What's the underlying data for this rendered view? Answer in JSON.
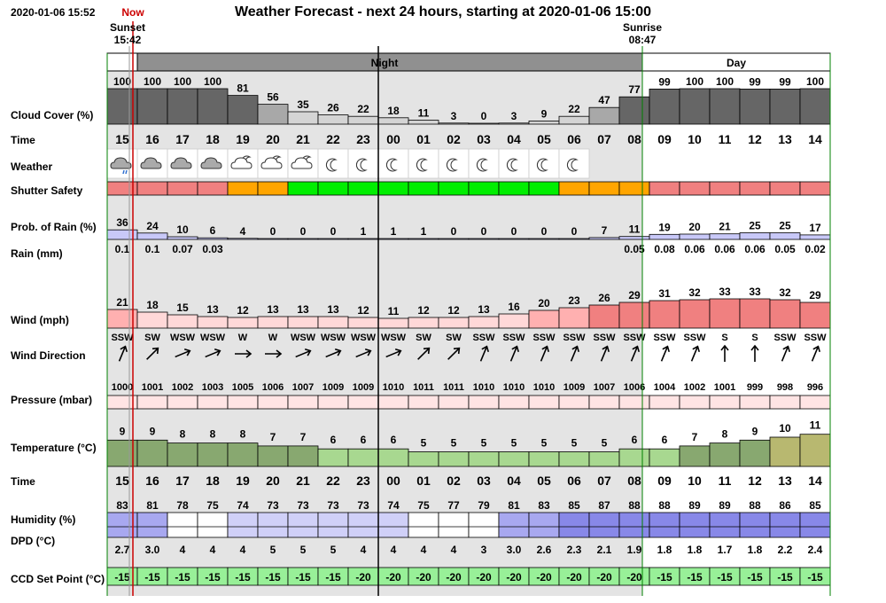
{
  "header": {
    "timestamp": "2020-01-06 15:52",
    "title": "Weather Forecast - next 24 hours, starting at 2020-01-06 15:00",
    "now_label": "Now",
    "sunset_label": "Sunset",
    "sunset_time": "15:42",
    "sunrise_label": "Sunrise",
    "sunrise_time": "08:47",
    "night_label": "Night",
    "day_label": "Day"
  },
  "labels": {
    "cloud": "Cloud Cover (%)",
    "time": "Time",
    "weather": "Weather",
    "shutter": "Shutter Safety",
    "prob_rain": "Prob. of Rain (%)",
    "rain": "Rain (mm)",
    "wind": "Wind (mph)",
    "wind_dir": "Wind Direction",
    "pressure": "Pressure (mbar)",
    "temperature": "Temperature (°C)",
    "time2": "Time",
    "humidity": "Humidity (%)",
    "dpd": "DPD (°C)",
    "ccd": "CCD Set Point (°C)"
  },
  "colors": {
    "night_bg": "#e4e4e4",
    "night_header": "#909090",
    "cloud_dark": "#666666",
    "cloud_mid": "#a8a8a8",
    "cloud_light": "#d4d4d4",
    "shutter_red": "#f08080",
    "shutter_orange": "#ffa500",
    "shutter_green": "#00ee00",
    "rain_prob": "#c8c8f8",
    "wind_light": "#ffd8d8",
    "wind_mid": "#ffb0b0",
    "wind_dark": "#f08080",
    "pressure": "#ffe4e4",
    "temp_dark": "#88a870",
    "temp_light": "#a8d890",
    "temp_warm": "#b8b870",
    "humidity_light": "#d0d0f8",
    "humidity_mid": "#a8a8f0",
    "humidity_dark": "#8888e8",
    "ccd": "#98f098",
    "now_line": "#cc0000",
    "day_line": "#008000"
  },
  "chart_data": {
    "type": "table",
    "hours": [
      "15",
      "16",
      "17",
      "18",
      "19",
      "20",
      "21",
      "22",
      "23",
      "00",
      "01",
      "02",
      "03",
      "04",
      "05",
      "06",
      "07",
      "08",
      "09",
      "10",
      "11",
      "12",
      "13",
      "14"
    ],
    "cloud_cover": [
      100,
      100,
      100,
      100,
      81,
      56,
      35,
      26,
      22,
      18,
      11,
      3,
      0,
      3,
      9,
      22,
      47,
      77,
      99,
      100,
      100,
      99,
      99,
      100
    ],
    "weather_icons": [
      "rain-cloud-icon",
      "cloud-icon",
      "cloud-icon",
      "cloud-icon",
      "partly-cloudy-moon-icon",
      "partly-cloudy-moon-icon",
      "partly-cloudy-moon-icon",
      "moon-icon",
      "moon-icon",
      "moon-icon",
      "moon-icon",
      "moon-icon",
      "moon-icon",
      "moon-icon",
      "moon-icon",
      "moon-icon",
      "",
      "",
      "",
      "",
      "",
      "",
      "",
      ""
    ],
    "shutter_safety": [
      "red",
      "red",
      "red",
      "red",
      "orange",
      "orange",
      "green",
      "green",
      "green",
      "green",
      "green",
      "green",
      "green",
      "green",
      "green",
      "orange",
      "orange",
      "orange",
      "red",
      "red",
      "red",
      "red",
      "red",
      "red"
    ],
    "prob_rain": [
      36,
      24,
      10,
      6,
      4,
      0,
      0,
      0,
      1,
      1,
      1,
      0,
      0,
      0,
      0,
      0,
      7,
      11,
      19,
      20,
      21,
      25,
      25,
      17
    ],
    "rain_mm": [
      "0.1",
      "0.1",
      "0.07",
      "0.03",
      "",
      "",
      "",
      "",
      "",
      "",
      "",
      "",
      "",
      "",
      "",
      "",
      "",
      "0.05",
      "0.08",
      "0.06",
      "0.06",
      "0.06",
      "0.05",
      "0.02"
    ],
    "wind_mph": [
      21,
      18,
      15,
      13,
      12,
      13,
      13,
      13,
      12,
      11,
      12,
      12,
      13,
      16,
      20,
      23,
      26,
      29,
      31,
      32,
      33,
      33,
      32,
      29
    ],
    "wind_dir": [
      "SSW",
      "SW",
      "WSW",
      "WSW",
      "W",
      "W",
      "WSW",
      "WSW",
      "WSW",
      "WSW",
      "SW",
      "SW",
      "SSW",
      "SSW",
      "SSW",
      "SSW",
      "SSW",
      "SSW",
      "SSW",
      "SSW",
      "S",
      "S",
      "SSW",
      "SSW"
    ],
    "pressure_mbar": [
      1000,
      1001,
      1002,
      1003,
      1005,
      1006,
      1007,
      1009,
      1009,
      1010,
      1011,
      1011,
      1010,
      1010,
      1010,
      1009,
      1007,
      1006,
      1004,
      1002,
      1001,
      999,
      998,
      996
    ],
    "temperature_c": [
      9,
      9,
      8,
      8,
      8,
      7,
      7,
      6,
      6,
      6,
      5,
      5,
      5,
      5,
      5,
      5,
      5,
      6,
      6,
      7,
      8,
      9,
      10,
      11
    ],
    "humidity_pct": [
      83,
      81,
      78,
      75,
      74,
      73,
      73,
      73,
      73,
      74,
      75,
      77,
      79,
      81,
      83,
      85,
      87,
      88,
      88,
      89,
      89,
      88,
      86,
      85
    ],
    "dpd_c": [
      "2.7",
      "3.0",
      "4",
      "4",
      "4",
      "5",
      "5",
      "5",
      "4",
      "4",
      "4",
      "4",
      "3",
      "3.0",
      "2.6",
      "2.3",
      "2.1",
      "1.9",
      "1.8",
      "1.8",
      "1.7",
      "1.8",
      "2.2",
      "2.4"
    ],
    "ccd_set_point": [
      -15,
      -15,
      -15,
      -15,
      -15,
      -15,
      -15,
      -15,
      -20,
      -20,
      -20,
      -20,
      -20,
      -20,
      -20,
      -20,
      -20,
      -20,
      -15,
      -15,
      -15,
      -15,
      -15,
      -15
    ]
  }
}
